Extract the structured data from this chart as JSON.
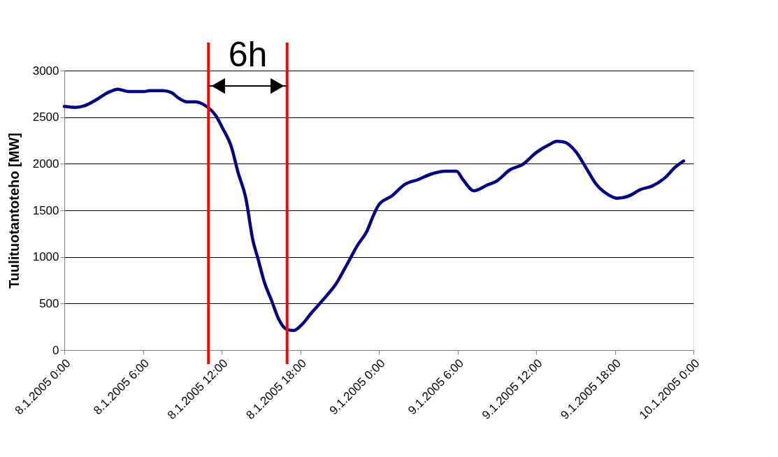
{
  "chart_data": {
    "type": "line",
    "ylabel": "Tuulituotantoteho [MW]",
    "x": [
      "2005-01-08T00:00",
      "2005-01-08T00:50",
      "2005-01-08T01:30",
      "2005-01-08T02:25",
      "2005-01-08T03:25",
      "2005-01-08T04:05",
      "2005-01-08T04:55",
      "2005-01-08T06:05",
      "2005-01-08T06:30",
      "2005-01-08T07:30",
      "2005-01-08T08:10",
      "2005-01-08T08:40",
      "2005-01-08T09:20",
      "2005-01-08T10:00",
      "2005-01-08T10:45",
      "2005-01-08T11:35",
      "2005-01-08T12:05",
      "2005-01-08T12:45",
      "2005-01-08T13:15",
      "2005-01-08T13:50",
      "2005-01-08T14:25",
      "2005-01-08T14:45",
      "2005-01-08T15:15",
      "2005-01-08T15:50",
      "2005-01-08T16:20",
      "2005-01-08T17:00",
      "2005-01-08T17:30",
      "2005-01-08T18:10",
      "2005-01-08T18:50",
      "2005-01-08T19:30",
      "2005-01-08T20:05",
      "2005-01-08T20:45",
      "2005-01-08T21:25",
      "2005-01-08T22:25",
      "2005-01-08T23:05",
      "2005-01-08T23:35",
      "2005-01-09T00:00",
      "2005-01-09T01:00",
      "2005-01-09T02:00",
      "2005-01-09T03:00",
      "2005-01-09T04:00",
      "2005-01-09T05:05",
      "2005-01-09T05:55",
      "2005-01-09T06:25",
      "2005-01-09T07:15",
      "2005-01-09T08:15",
      "2005-01-09T09:00",
      "2005-01-09T10:00",
      "2005-01-09T11:00",
      "2005-01-09T12:00",
      "2005-01-09T13:00",
      "2005-01-09T13:35",
      "2005-01-09T14:05",
      "2005-01-09T15:05",
      "2005-01-09T15:45",
      "2005-01-09T16:35",
      "2005-01-09T17:25",
      "2005-01-09T18:10",
      "2005-01-09T19:00",
      "2005-01-09T20:00",
      "2005-01-09T20:50",
      "2005-01-09T21:50",
      "2005-01-09T22:35",
      "2005-01-09T23:15"
    ],
    "series": [
      {
        "color": "#000080",
        "values": [
          2615,
          2605,
          2620,
          2685,
          2770,
          2800,
          2775,
          2775,
          2785,
          2785,
          2765,
          2710,
          2665,
          2665,
          2625,
          2510,
          2380,
          2180,
          1910,
          1640,
          1160,
          995,
          735,
          525,
          340,
          220,
          210,
          280,
          395,
          500,
          595,
          715,
          880,
          1135,
          1275,
          1445,
          1560,
          1655,
          1780,
          1830,
          1890,
          1920,
          1920,
          1830,
          1710,
          1770,
          1815,
          1935,
          1995,
          2120,
          2205,
          2240,
          2235,
          2120,
          1970,
          1780,
          1675,
          1630,
          1650,
          1725,
          1760,
          1850,
          1960,
          2030
        ]
      }
    ],
    "xlim": [
      "2005-01-08T00:00",
      "2005-01-10T00:00"
    ],
    "xticks": [
      {
        "value": "2005-01-08T00:00",
        "label": "8.1.2005 0:00"
      },
      {
        "value": "2005-01-08T06:00",
        "label": "8.1.2005 6:00"
      },
      {
        "value": "2005-01-08T12:00",
        "label": "8.1.2005 12:00"
      },
      {
        "value": "2005-01-08T18:00",
        "label": "8.1.2005 18:00"
      },
      {
        "value": "2005-01-09T00:00",
        "label": "9.1.2005 0:00"
      },
      {
        "value": "2005-01-09T06:00",
        "label": "9.1.2005 6:00"
      },
      {
        "value": "2005-01-09T12:00",
        "label": "9.1.2005 12:00"
      },
      {
        "value": "2005-01-09T18:00",
        "label": "9.1.2005 18:00"
      },
      {
        "value": "2005-01-10T00:00",
        "label": "10.1.2005 0:00"
      }
    ],
    "ylim": [
      0,
      3000
    ],
    "yticks": [
      0,
      500,
      1000,
      1500,
      2000,
      2500,
      3000
    ],
    "grid": "y",
    "ref_lines": [
      {
        "axis": "x",
        "value": "2005-01-08T11:00",
        "color": "#ff0000"
      },
      {
        "axis": "x",
        "value": "2005-01-08T17:00",
        "color": "#ff0000"
      }
    ],
    "annotations": [
      "6h"
    ]
  }
}
